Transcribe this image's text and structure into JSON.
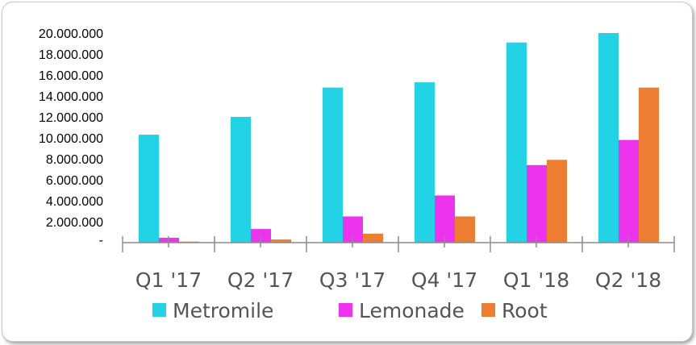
{
  "chart_data": {
    "type": "bar",
    "title": "",
    "xlabel": "",
    "ylabel": "",
    "categories": [
      "Q1 '17",
      "Q2 '17",
      "Q3 '17",
      "Q4 '17",
      "Q1 '18",
      "Q2 '18"
    ],
    "series": [
      {
        "name": "Metromile",
        "color": "#22d3e6",
        "values": [
          10300000,
          12000000,
          14800000,
          15300000,
          19100000,
          20000000
        ]
      },
      {
        "name": "Lemonade",
        "color": "#ee33ee",
        "values": [
          460000,
          1300000,
          2500000,
          4500000,
          7400000,
          9800000
        ]
      },
      {
        "name": "Root",
        "color": "#ed7d31",
        "values": [
          100000,
          300000,
          850000,
          2500000,
          7900000,
          14800000
        ]
      }
    ],
    "ylim": [
      0,
      20000000
    ],
    "yticks": [
      0,
      2000000,
      4000000,
      6000000,
      8000000,
      10000000,
      12000000,
      14000000,
      16000000,
      18000000,
      20000000
    ],
    "ytick_labels": [
      "-",
      "2.000.000",
      "4.000.000",
      "6.000.000",
      "8.000.000",
      "10.000.000",
      "12.000.000",
      "14.000.000",
      "16.000.000",
      "18.000.000",
      "20.000.000"
    ],
    "grid": false,
    "legend_position": "bottom"
  }
}
